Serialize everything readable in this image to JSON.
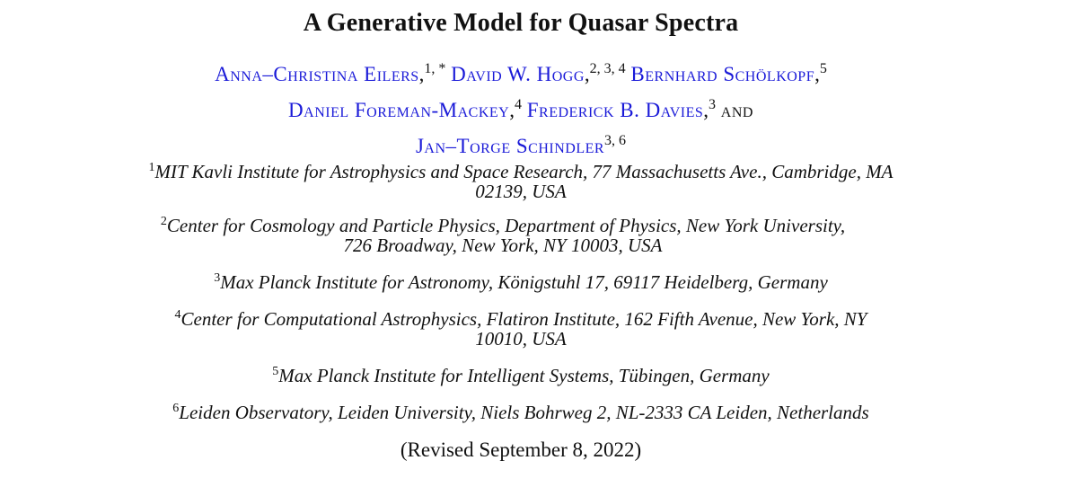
{
  "paper": {
    "title": "A Generative Model for Quasar Spectra",
    "authors": [
      {
        "name": "Anna–Christina Eilers",
        "affil_marks": "1, *"
      },
      {
        "name": "David W. Hogg",
        "affil_marks": "2, 3, 4"
      },
      {
        "name": "Bernhard Schölkopf",
        "affil_marks": "5"
      },
      {
        "name": "Daniel Foreman-Mackey",
        "affil_marks": "4"
      },
      {
        "name": "Frederick B. Davies",
        "affil_marks": "3"
      },
      {
        "name": "Jan–Torge Schindler",
        "affil_marks": "3, 6"
      }
    ],
    "and_word": "and",
    "affiliations": [
      {
        "mark": "1",
        "line1": "MIT Kavli Institute for Astrophysics and Space Research, 77 Massachusetts Ave., Cambridge, MA",
        "line2": "02139, USA"
      },
      {
        "mark": "2",
        "line1": "Center for Cosmology and Particle Physics, Department of Physics, New York University,",
        "line2": "726 Broadway, New York, NY 10003, USA"
      },
      {
        "mark": "3",
        "line1": "Max Planck Institute for Astronomy, Königstuhl 17, 69117 Heidelberg, Germany",
        "line2": ""
      },
      {
        "mark": "4",
        "line1": "Center for Computational Astrophysics, Flatiron Institute, 162 Fifth Avenue, New York, NY",
        "line2": "10010, USA"
      },
      {
        "mark": "5",
        "line1": "Max Planck Institute for Intelligent Systems, Tübingen, Germany",
        "line2": ""
      },
      {
        "mark": "6",
        "line1": "Leiden Observatory, Leiden University, Niels Bohrweg 2, NL-2333 CA Leiden, Netherlands",
        "line2": ""
      }
    ],
    "revised": "(Revised September 8, 2022)"
  },
  "colors": {
    "author_link": "#1a1ad8",
    "text": "#111111",
    "background": "#ffffff"
  }
}
